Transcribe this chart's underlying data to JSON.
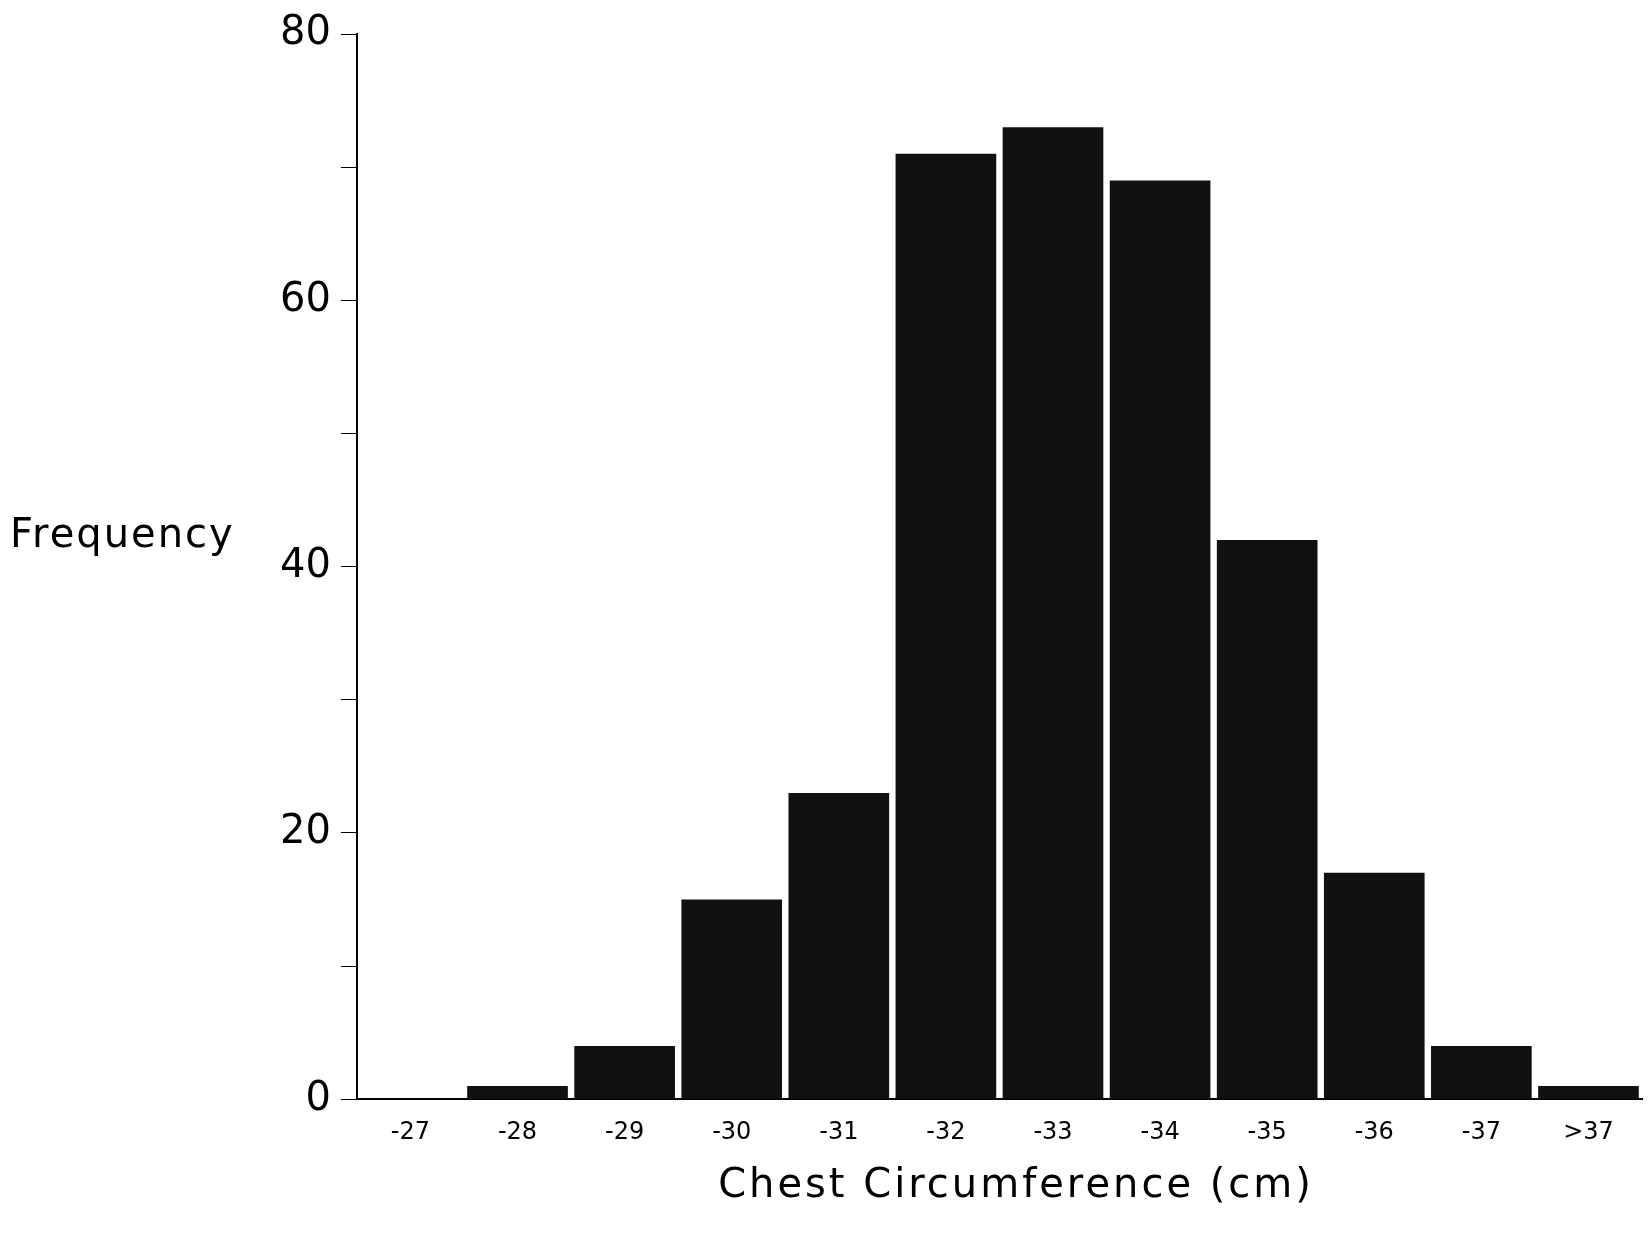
{
  "chart_data": {
    "type": "bar",
    "xlabel": "Chest Circumference (cm)",
    "ylabel": "Frequency",
    "categories": [
      "-27",
      "-28",
      "-29",
      "-30",
      "-31",
      "-32",
      "-33",
      "-34",
      "-35",
      "-36",
      "-37",
      ">37"
    ],
    "values": [
      0,
      1,
      4,
      15,
      23,
      71,
      73,
      69,
      42,
      17,
      4,
      1
    ],
    "color": "#111111",
    "ylim": [
      0,
      80
    ],
    "yticks": [
      0,
      {
        "value": 10,
        "label": null
      },
      20,
      {
        "value": 30,
        "label": null
      },
      40,
      {
        "value": 50,
        "label": null
      },
      60,
      {
        "value": 70,
        "label": null
      },
      80
    ],
    "grid": false,
    "legend": false
  }
}
